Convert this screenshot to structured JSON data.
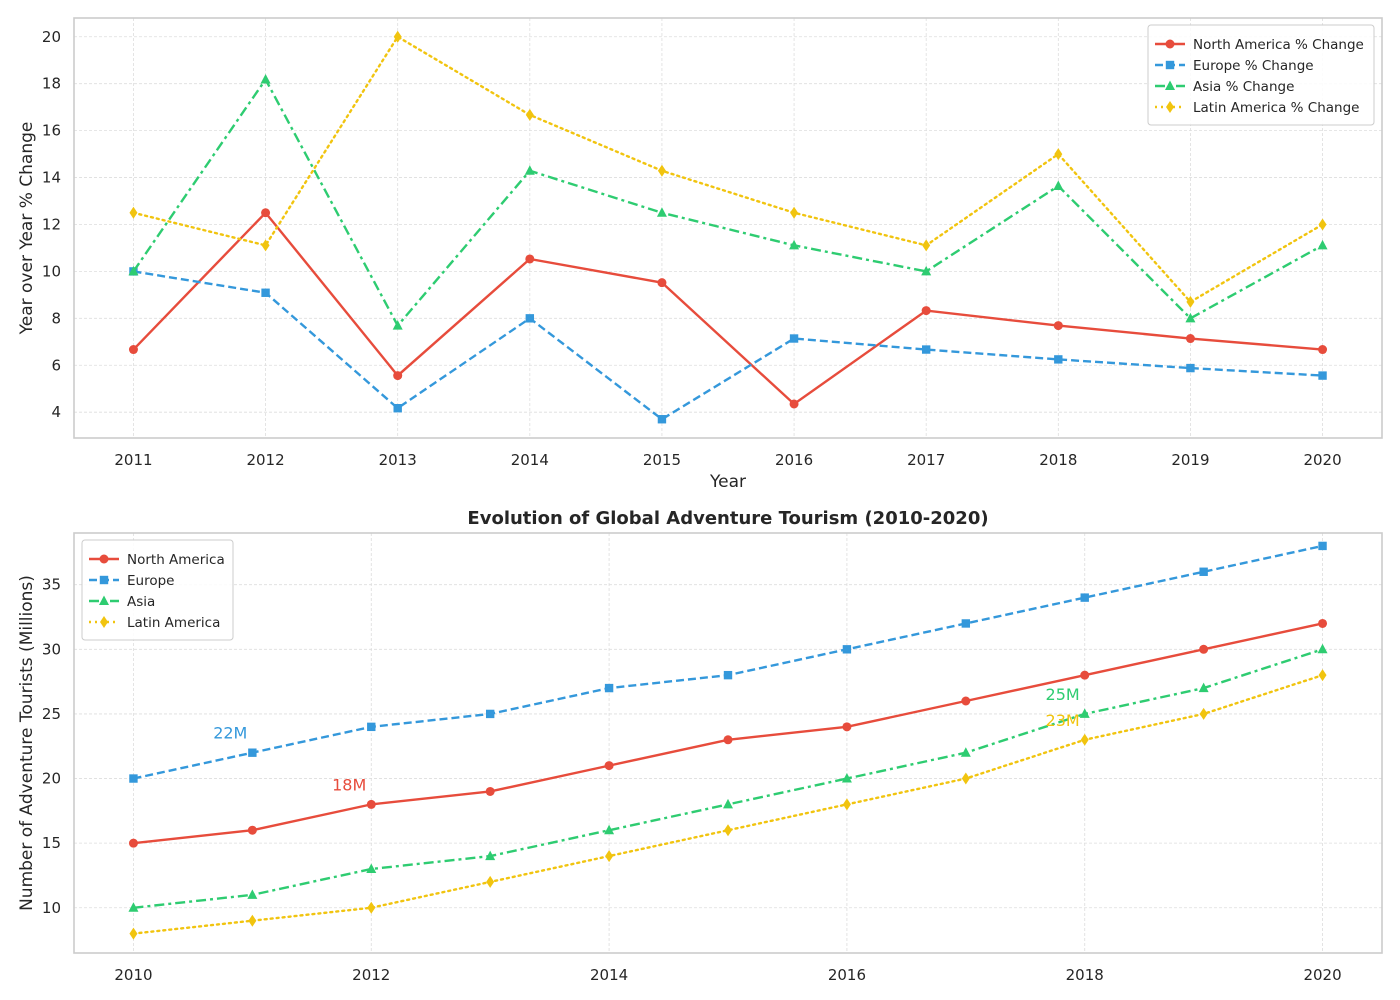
{
  "chart_data": [
    {
      "type": "line",
      "title": "",
      "xlabel": "Year",
      "ylabel": "Year over Year % Change",
      "xlim": [
        2010.55,
        2020.45
      ],
      "ylim": [
        2.9,
        20.8
      ],
      "xticks": [
        2011,
        2012,
        2013,
        2014,
        2015,
        2016,
        2017,
        2018,
        2019,
        2020
      ],
      "yticks": [
        4,
        6,
        8,
        10,
        12,
        14,
        16,
        18,
        20
      ],
      "grid": true,
      "legend_position": "top-right",
      "x": [
        2011,
        2012,
        2013,
        2014,
        2015,
        2016,
        2017,
        2018,
        2019,
        2020
      ],
      "series": [
        {
          "name": "North America % Change",
          "color": "#e74c3c",
          "dash": "solid",
          "marker": "circle",
          "values": [
            6.67,
            12.5,
            5.56,
            10.53,
            9.52,
            4.35,
            8.33,
            7.69,
            7.14,
            6.67
          ]
        },
        {
          "name": "Europe % Change",
          "color": "#3498db",
          "dash": "dashed",
          "marker": "square",
          "values": [
            10.0,
            9.09,
            4.17,
            8.0,
            3.7,
            7.14,
            6.67,
            6.25,
            5.88,
            5.56
          ]
        },
        {
          "name": "Asia % Change",
          "color": "#2ecc71",
          "dash": "dashdot",
          "marker": "triangle",
          "values": [
            10.0,
            18.18,
            7.69,
            14.29,
            12.5,
            11.11,
            10.0,
            13.64,
            8.0,
            11.11
          ]
        },
        {
          "name": "Latin America % Change",
          "color": "#f1c40f",
          "dash": "dotted",
          "marker": "diamond",
          "values": [
            12.5,
            11.11,
            20.0,
            16.67,
            14.29,
            12.5,
            11.11,
            15.0,
            8.7,
            12.0
          ]
        }
      ],
      "annotations": []
    },
    {
      "type": "line",
      "title": "Evolution of Global Adventure Tourism (2010-2020)",
      "xlabel": "",
      "ylabel": "Number of Adventure Tourists (Millions)",
      "xlim": [
        2009.5,
        2020.5
      ],
      "ylim": [
        6.5,
        39.0
      ],
      "xticks": [
        2010,
        2012,
        2014,
        2016,
        2018,
        2020
      ],
      "yticks": [
        10,
        15,
        20,
        25,
        30,
        35
      ],
      "grid": true,
      "legend_position": "top-left",
      "x": [
        2010,
        2011,
        2012,
        2013,
        2014,
        2015,
        2016,
        2017,
        2018,
        2019,
        2020
      ],
      "series": [
        {
          "name": "North America",
          "color": "#e74c3c",
          "dash": "solid",
          "marker": "circle",
          "values": [
            15,
            16,
            18,
            19,
            21,
            23,
            24,
            26,
            28,
            30,
            32
          ]
        },
        {
          "name": "Europe",
          "color": "#3498db",
          "dash": "dashed",
          "marker": "square",
          "values": [
            20,
            22,
            24,
            25,
            27,
            28,
            30,
            32,
            34,
            36,
            38
          ]
        },
        {
          "name": "Asia",
          "color": "#2ecc71",
          "dash": "dashdot",
          "marker": "triangle",
          "values": [
            10,
            11,
            13,
            14,
            16,
            18,
            20,
            22,
            25,
            27,
            30
          ]
        },
        {
          "name": "Latin America",
          "color": "#f1c40f",
          "dash": "dotted",
          "marker": "diamond",
          "values": [
            8,
            9,
            10,
            12,
            14,
            16,
            18,
            20,
            23,
            25,
            28
          ]
        }
      ],
      "annotations": [
        {
          "text": "22M",
          "x": 2011,
          "y": 22,
          "color": "#3498db"
        },
        {
          "text": "18M",
          "x": 2012,
          "y": 18,
          "color": "#e74c3c"
        },
        {
          "text": "25M",
          "x": 2018,
          "y": 25,
          "color": "#2ecc71"
        },
        {
          "text": "23M",
          "x": 2018,
          "y": 23,
          "color": "#f1c40f"
        }
      ]
    }
  ]
}
